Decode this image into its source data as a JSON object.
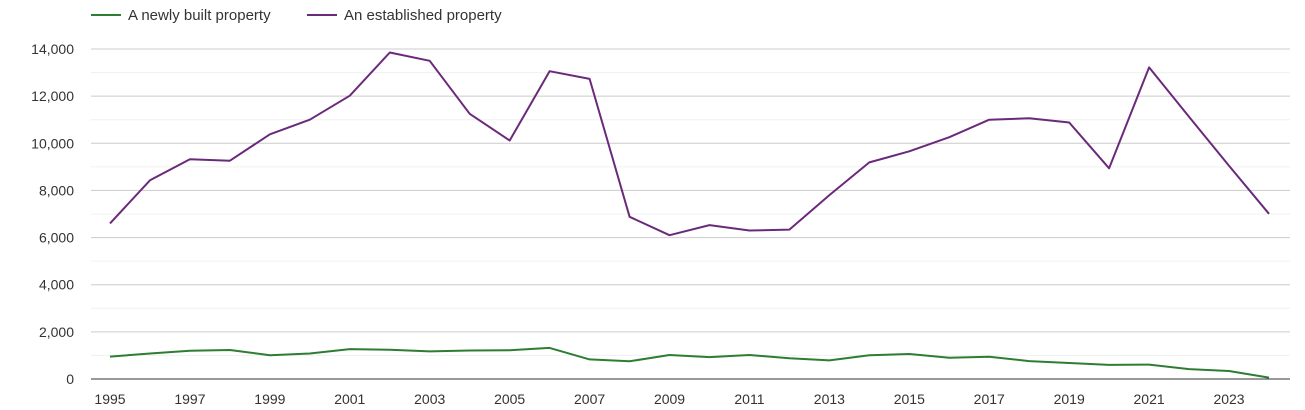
{
  "chart_data": {
    "type": "line",
    "title": "",
    "xlabel": "",
    "ylabel": "",
    "x": [
      1995,
      1996,
      1997,
      1998,
      1999,
      2000,
      2001,
      2002,
      2003,
      2004,
      2005,
      2006,
      2007,
      2008,
      2009,
      2010,
      2011,
      2012,
      2013,
      2014,
      2015,
      2016,
      2017,
      2018,
      2019,
      2020,
      2021,
      2022,
      2023,
      2024
    ],
    "x_tick_labels": [
      "1995",
      "1997",
      "1999",
      "2001",
      "2003",
      "2005",
      "2007",
      "2009",
      "2011",
      "2013",
      "2015",
      "2017",
      "2019",
      "2021",
      "2023"
    ],
    "y_tick_labels": [
      "0",
      "2,000",
      "4,000",
      "6,000",
      "8,000",
      "10,000",
      "12,000",
      "14,000"
    ],
    "y_ticks": [
      0,
      2000,
      4000,
      6000,
      8000,
      10000,
      12000,
      14000
    ],
    "xlim": [
      1995,
      2024
    ],
    "ylim": [
      0,
      14000
    ],
    "grid": true,
    "legend_position": "top-left",
    "series": [
      {
        "name": "A newly built property",
        "color": "#2e7d32",
        "values": [
          950,
          1080,
          1200,
          1230,
          1010,
          1080,
          1270,
          1240,
          1170,
          1210,
          1220,
          1320,
          830,
          750,
          1020,
          930,
          1020,
          880,
          790,
          1010,
          1060,
          900,
          940,
          760,
          680,
          600,
          610,
          420,
          340,
          60
        ]
      },
      {
        "name": "An established property",
        "color": "#6a2a7a",
        "values": [
          6600,
          8430,
          9320,
          9260,
          10380,
          11000,
          12020,
          13850,
          13500,
          11250,
          10120,
          13060,
          12730,
          6880,
          6100,
          6530,
          6300,
          6340,
          7800,
          9190,
          9660,
          10260,
          11000,
          11060,
          10880,
          8940,
          13220,
          11120,
          9050,
          7010
        ]
      }
    ]
  }
}
